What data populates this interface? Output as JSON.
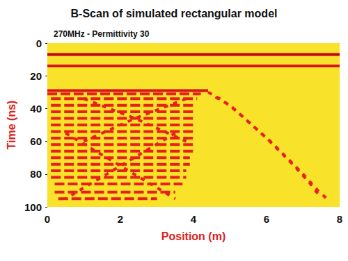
{
  "chart_data": {
    "type": "line",
    "title": "B-Scan of simulated rectangular model",
    "subtitle": "270MHz - Permittivity 30",
    "x_label": "Position (m)",
    "y_label": "Time (ns)",
    "xlim": [
      0,
      8
    ],
    "xticks": [
      0,
      2,
      4,
      6,
      8
    ],
    "ylim": [
      0,
      100
    ],
    "yticks": [
      0,
      20,
      40,
      60,
      80,
      100
    ],
    "grid": false,
    "series": [
      {
        "color": "#c4001c",
        "line_style": "solid",
        "x": [
          0,
          8
        ],
        "values": [
          7,
          7
        ]
      },
      {
        "color": "#d81420",
        "line_style": "solid",
        "x": [
          0,
          8
        ],
        "values": [
          14,
          14
        ]
      },
      {
        "color": "#d81420",
        "line_style": "solid",
        "x": [
          0,
          4.4
        ],
        "values": [
          29,
          29
        ]
      },
      {
        "color": "#e8201a",
        "line_style": "dashed",
        "x": [
          0,
          4.2
        ],
        "values": [
          31,
          31
        ]
      },
      {
        "color": "#e8201a",
        "line_style": "dashed",
        "x": [
          0.1,
          4.1
        ],
        "values": [
          34,
          34
        ]
      },
      {
        "color": "#e8201a",
        "line_style": "dashed",
        "x": [
          0.1,
          4.0
        ],
        "values": [
          38,
          38
        ]
      },
      {
        "color": "#e8201a",
        "line_style": "dashed",
        "x": [
          0.1,
          4.0
        ],
        "values": [
          42,
          42
        ]
      },
      {
        "color": "#e8201a",
        "line_style": "dashed",
        "x": [
          0.1,
          4.0
        ],
        "values": [
          46,
          46
        ]
      },
      {
        "color": "#e8201a",
        "line_style": "dashed",
        "x": [
          0.1,
          4.0
        ],
        "values": [
          50,
          50
        ]
      },
      {
        "color": "#e8201a",
        "line_style": "dashed",
        "x": [
          0.1,
          4.0
        ],
        "values": [
          54,
          54
        ]
      },
      {
        "color": "#e8201a",
        "line_style": "dashed",
        "x": [
          0.1,
          4.0
        ],
        "values": [
          58,
          58
        ]
      },
      {
        "color": "#e8201a",
        "line_style": "dashed",
        "x": [
          0.1,
          4.0
        ],
        "values": [
          62,
          62
        ]
      },
      {
        "color": "#e8201a",
        "line_style": "dashed",
        "x": [
          0.1,
          4.0
        ],
        "values": [
          66,
          66
        ]
      },
      {
        "color": "#e8201a",
        "line_style": "dashed",
        "x": [
          0.1,
          3.9
        ],
        "values": [
          70,
          70
        ]
      },
      {
        "color": "#e8201a",
        "line_style": "dashed",
        "x": [
          0.1,
          3.9
        ],
        "values": [
          74,
          74
        ]
      },
      {
        "color": "#e8201a",
        "line_style": "dashed",
        "x": [
          0.1,
          3.8
        ],
        "values": [
          78,
          78
        ]
      },
      {
        "color": "#e8201a",
        "line_style": "dashed",
        "x": [
          0.1,
          3.8
        ],
        "values": [
          82,
          82
        ]
      },
      {
        "color": "#e8201a",
        "line_style": "dashed",
        "x": [
          0.2,
          3.7
        ],
        "values": [
          86,
          86
        ]
      },
      {
        "color": "#e8201a",
        "line_style": "dashed",
        "x": [
          0.2,
          3.5
        ],
        "values": [
          91,
          91
        ]
      },
      {
        "color": "#e8201a",
        "line_style": "dashed",
        "x": [
          0.3,
          3.0
        ],
        "values": [
          95,
          95
        ]
      },
      {
        "color": "#e8201a",
        "line_style": "dotted",
        "x": [
          1.0,
          2.4,
          3.8
        ],
        "values": [
          34,
          46,
          60
        ]
      },
      {
        "color": "#e8201a",
        "line_style": "dotted",
        "x": [
          3.8,
          2.4,
          1.0
        ],
        "values": [
          34,
          46,
          60
        ]
      },
      {
        "color": "#e8201a",
        "line_style": "dotted",
        "x": [
          0.5,
          2.0,
          3.5
        ],
        "values": [
          55,
          75,
          95
        ]
      },
      {
        "color": "#e8201a",
        "line_style": "dotted",
        "x": [
          3.5,
          2.0,
          0.5
        ],
        "values": [
          55,
          75,
          95
        ]
      },
      {
        "color": "#e8201a",
        "line_style": "dotted",
        "x": [
          4.4,
          4.8,
          5.2,
          5.6,
          6.0,
          6.4,
          6.8,
          7.2,
          7.4
        ],
        "values": [
          30,
          35,
          42,
          50,
          58,
          67,
          76,
          86,
          92
        ]
      },
      {
        "color": "#e8201a",
        "line_style": "dotted",
        "x": [
          4.6,
          5.0,
          5.4,
          5.8,
          6.2,
          6.6,
          7.0,
          7.4,
          7.7
        ],
        "values": [
          33,
          38,
          46,
          54,
          62,
          71,
          80,
          90,
          96
        ]
      }
    ]
  }
}
